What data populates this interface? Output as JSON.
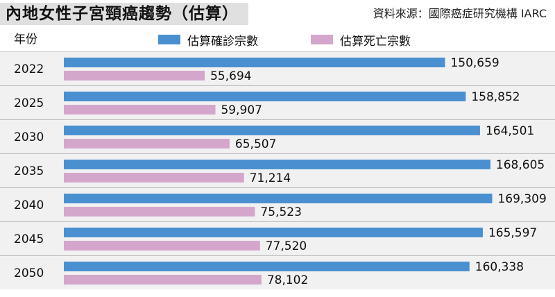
{
  "header": {
    "title": "內地女性子宮頸癌趨勢（估算）",
    "source": "資料來源：國際癌症研究機構 IARC",
    "year_label": "年份"
  },
  "legend": [
    {
      "label": "估算確診宗數",
      "color": "#4a90d0"
    },
    {
      "label": "估算死亡宗數",
      "color": "#d4a6cc"
    }
  ],
  "chart_data": {
    "type": "bar",
    "orientation": "horizontal",
    "title": "內地女性子宮頸癌趨勢（估算）",
    "ylabel": "年份",
    "categories": [
      "2022",
      "2025",
      "2030",
      "2035",
      "2040",
      "2045",
      "2050"
    ],
    "series": [
      {
        "name": "估算確診宗數",
        "color": "#4a90d0",
        "values": [
          150659,
          158852,
          164501,
          168605,
          169309,
          165597,
          160338
        ],
        "labels": [
          "150,659",
          "158,852",
          "164,501",
          "168,605",
          "169,309",
          "165,597",
          "160,338"
        ]
      },
      {
        "name": "估算死亡宗數",
        "color": "#d4a6cc",
        "values": [
          55694,
          59907,
          65507,
          71214,
          75523,
          77520,
          78102
        ],
        "labels": [
          "55,694",
          "59,907",
          "65,507",
          "71,214",
          "75,523",
          "77,520",
          "78,102"
        ]
      }
    ],
    "xlim": [
      0,
      190000
    ],
    "grid": false,
    "legend_position": "top"
  }
}
